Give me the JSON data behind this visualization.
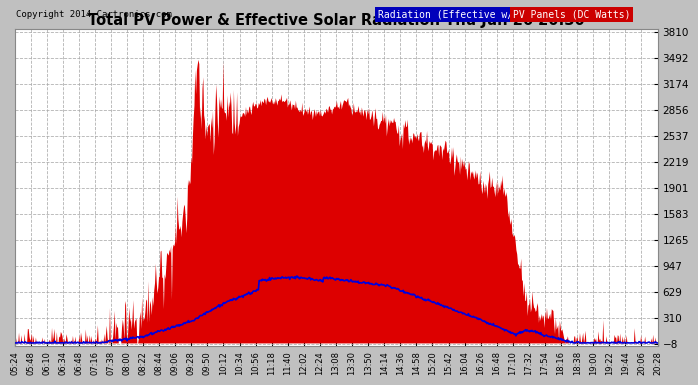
{
  "title": "Total PV Power & Effective Solar Radiation Thu Jun 26 20:30",
  "copyright": "Copyright 2014 Cartronics.com",
  "legend_radiation": "Radiation (Effective w/m2)",
  "legend_pv": "PV Panels (DC Watts)",
  "yticks": [
    3810.0,
    3491.9,
    3173.7,
    2855.6,
    2537.4,
    2219.3,
    1901.2,
    1583.0,
    1264.9,
    946.8,
    628.6,
    310.5,
    -7.7
  ],
  "ymin": -7.7,
  "ymax": 3810.0,
  "outer_bg": "#c8c8c8",
  "plot_bg": "#ffffff",
  "grid_color": "#aaaaaa",
  "title_color": "#000000",
  "tick_color": "#000000",
  "xtick_labels": [
    "05:24",
    "05:48",
    "06:10",
    "06:34",
    "06:48",
    "07:16",
    "07:38",
    "08:00",
    "08:22",
    "08:44",
    "09:06",
    "09:28",
    "09:50",
    "10:12",
    "10:34",
    "10:56",
    "11:18",
    "11:40",
    "12:02",
    "12:24",
    "13:08",
    "13:30",
    "13:50",
    "14:14",
    "14:36",
    "14:58",
    "15:20",
    "15:42",
    "16:04",
    "16:26",
    "16:48",
    "17:10",
    "17:32",
    "17:54",
    "18:16",
    "18:38",
    "19:00",
    "19:22",
    "19:44",
    "20:06",
    "20:28"
  ],
  "pv_color": "#dd0000",
  "radiation_color": "#0000dd",
  "legend_rad_bg": "#0000aa",
  "legend_pv_bg": "#cc0000"
}
